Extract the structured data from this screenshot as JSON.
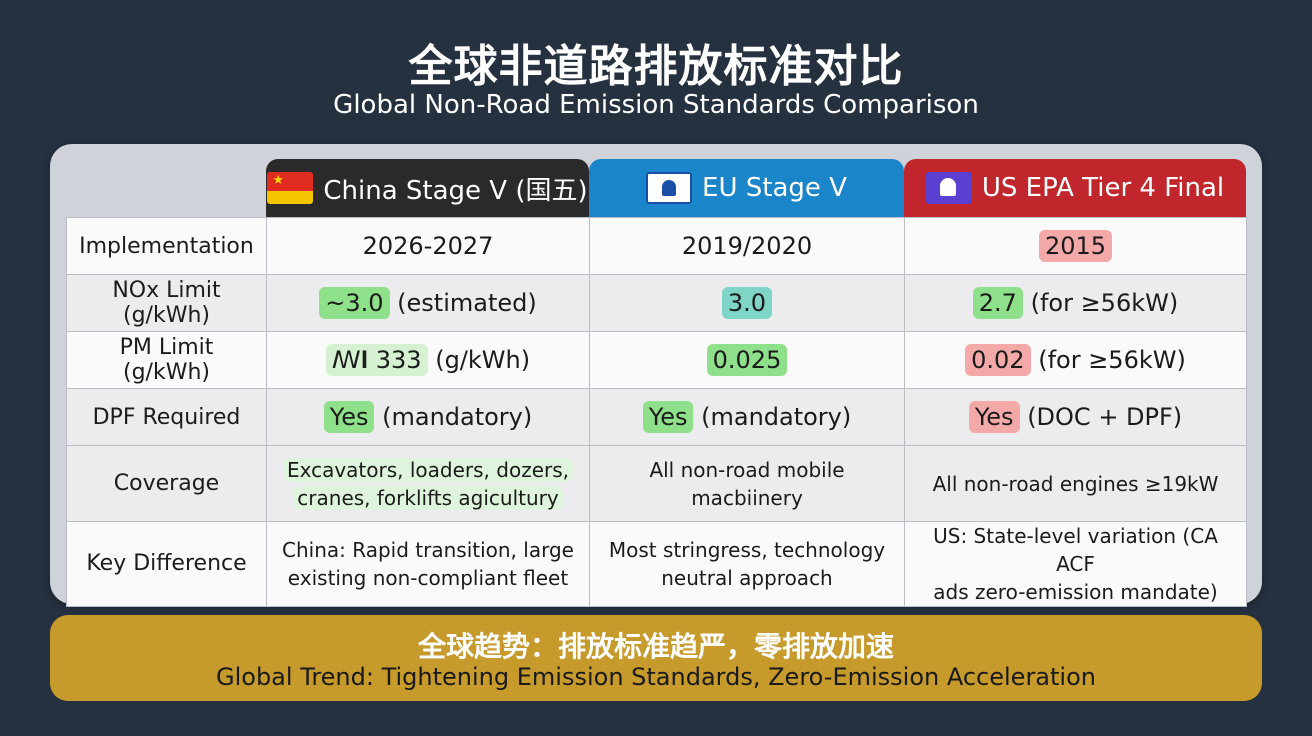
{
  "title": {
    "cn": "全球非道路排放标准对比",
    "en": "Global Non-Road Emission Standards Comparison"
  },
  "columns": [
    {
      "label": "China Stage V (国五)",
      "flag_icon": "china-flag-icon",
      "color": "#2a2a2a"
    },
    {
      "label": "EU Stage V",
      "flag_icon": "eu-flag-icon",
      "color": "#1a86c9"
    },
    {
      "label": "US EPA Tier 4 Final",
      "flag_icon": "us-epa-flag-icon",
      "color": "#c0262c"
    }
  ],
  "rows": [
    {
      "label": "Implementation",
      "cells": [
        {
          "pill": "",
          "text": "2026-2027"
        },
        {
          "pill": "",
          "text": "2019/2020"
        },
        {
          "pill": "2015",
          "text": ""
        }
      ]
    },
    {
      "label": "NOx Limit (g/kWh)",
      "cells": [
        {
          "pill": "~3.0",
          "text": " (estimated)"
        },
        {
          "pill": "3.0",
          "text": ""
        },
        {
          "pill": "2.7",
          "text": " (for ≥56kW)"
        }
      ]
    },
    {
      "label": "PM Limit (g/kWh)",
      "cells": [
        {
          "pill": "ꟿ𝐈 333",
          "text": " (g/kWh)"
        },
        {
          "pill": "0.025",
          "text": ""
        },
        {
          "pill": "0.02",
          "text": " (for ≥56kW)"
        }
      ]
    },
    {
      "label": "DPF Required",
      "cells": [
        {
          "pill": "Yes",
          "text": " (mandatory)"
        },
        {
          "pill": "Yes",
          "text": " (mandatory)"
        },
        {
          "pill": "Yes",
          "text": " (DOC + DPF)"
        }
      ]
    },
    {
      "label": "Coverage",
      "cells": [
        {
          "line1": "Excavators, loaders, dozers,",
          "line2": "cranes, forklifts agicultury"
        },
        {
          "line1": "All non-road mobile",
          "line2": "macbiinery"
        },
        {
          "line1": "All non-road engines ≥19kW",
          "line2": ""
        }
      ]
    },
    {
      "label": "Key Difference",
      "cells": [
        {
          "line1": "China: Rapid transition, large",
          "line2": "existing non-compliant fleet"
        },
        {
          "line1": "Most stringress, technology",
          "line2": "neutral approach"
        },
        {
          "line1": "US: State-level variation (CA ACF",
          "line2": "ads zero-emission mandate)"
        }
      ]
    }
  ],
  "footer": {
    "cn": "全球趋势：排放标准趋严，零排放加速",
    "en": "Global Trend: Tightening Emission Standards, Zero-Emission Acceleration"
  },
  "colors": {
    "background": "#263140",
    "highlight_green": "#8ee08a",
    "highlight_teal": "#7fd6c6",
    "highlight_red": "#f4a9a9",
    "footer": "#c79a2c"
  }
}
